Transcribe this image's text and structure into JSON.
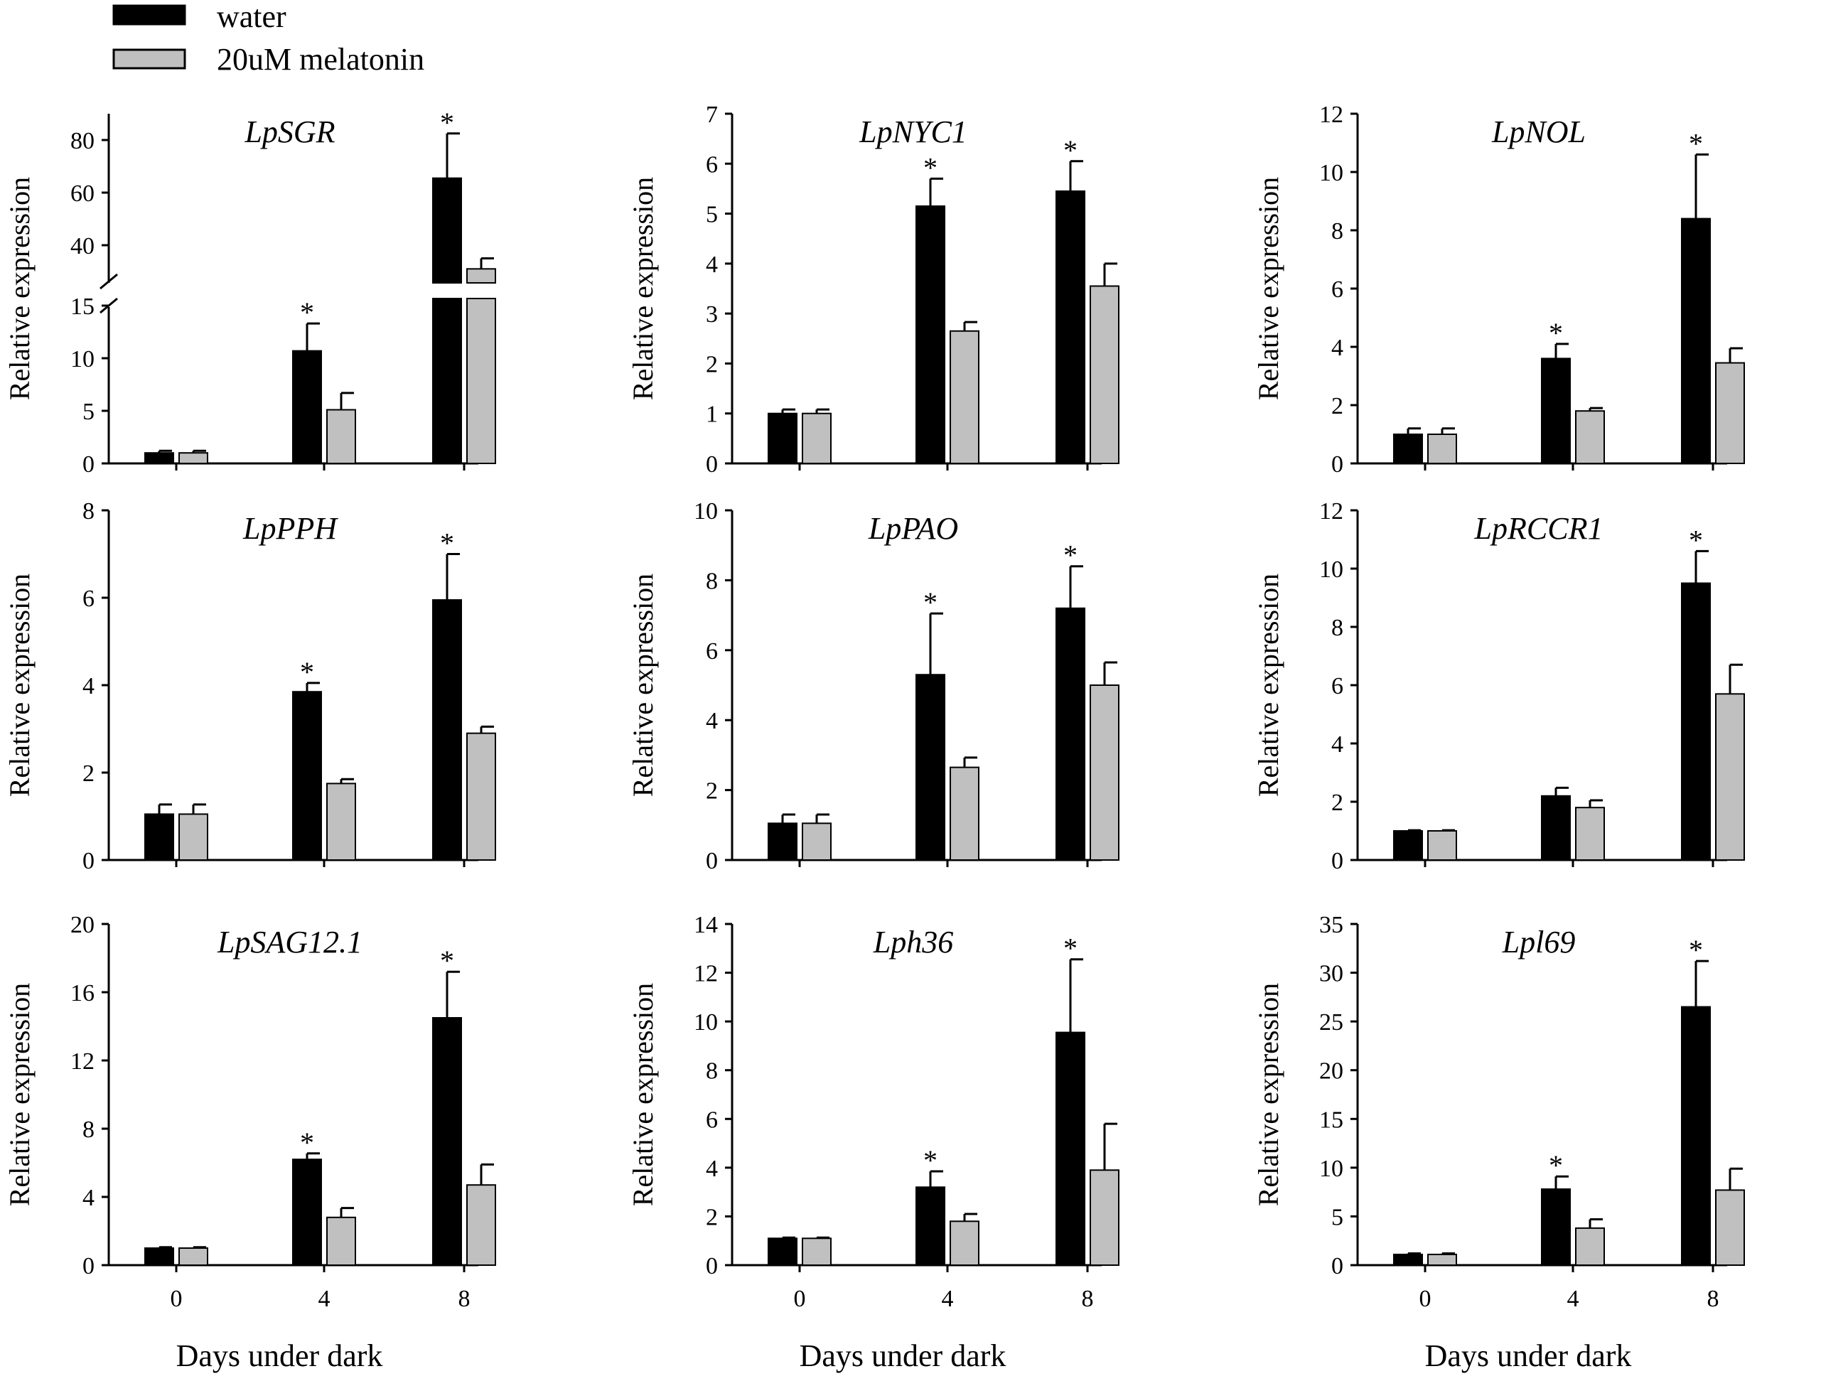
{
  "legend": {
    "items": [
      {
        "label": "water",
        "color": "#000000"
      },
      {
        "label": "20uM melatonin",
        "color": "#c0c0c0"
      }
    ]
  },
  "colors": {
    "water": "#000000",
    "melatonin": "#c0c0c0",
    "axis": "#000000"
  },
  "chart_data": [
    {
      "type": "bar",
      "title": "LpSGR",
      "ylabel": "Relative expression",
      "xlabel": "",
      "categories": [
        "0",
        "4",
        "8"
      ],
      "axis_break": {
        "lower_range": [
          0,
          15
        ],
        "upper_range": [
          30,
          90
        ]
      },
      "yticks_lower": [
        0,
        5,
        10,
        15
      ],
      "yticks_upper": [
        40,
        60,
        80
      ],
      "series": [
        {
          "name": "water",
          "values": [
            1.0,
            10.7,
            65.5
          ],
          "errors": [
            0.2,
            2.6,
            17
          ]
        },
        {
          "name": "20uM melatonin",
          "values": [
            1.0,
            5.1,
            31
          ],
          "errors": [
            0.2,
            1.6,
            4
          ]
        }
      ],
      "significance": [
        "",
        "*",
        "*"
      ]
    },
    {
      "type": "bar",
      "title": "LpNYC1",
      "ylabel": "Relative expression",
      "xlabel": "",
      "categories": [
        "0",
        "4",
        "8"
      ],
      "ylim": [
        0,
        7
      ],
      "yticks": [
        0,
        1,
        2,
        3,
        4,
        5,
        6,
        7
      ],
      "series": [
        {
          "name": "water",
          "values": [
            1.0,
            5.15,
            5.45
          ],
          "errors": [
            0.08,
            0.55,
            0.6
          ]
        },
        {
          "name": "20uM melatonin",
          "values": [
            1.0,
            2.65,
            3.55
          ],
          "errors": [
            0.08,
            0.18,
            0.45
          ]
        }
      ],
      "significance": [
        "",
        "*",
        "*"
      ]
    },
    {
      "type": "bar",
      "title": "LpNOL",
      "ylabel": "Relative expression",
      "xlabel": "",
      "categories": [
        "0",
        "4",
        "8"
      ],
      "ylim": [
        0,
        12
      ],
      "yticks": [
        0,
        2,
        4,
        6,
        8,
        10,
        12
      ],
      "series": [
        {
          "name": "water",
          "values": [
            1.0,
            3.6,
            8.4
          ],
          "errors": [
            0.2,
            0.5,
            2.2
          ]
        },
        {
          "name": "20uM melatonin",
          "values": [
            1.0,
            1.8,
            3.45
          ],
          "errors": [
            0.2,
            0.1,
            0.5
          ]
        }
      ],
      "significance": [
        "",
        "*",
        "*"
      ]
    },
    {
      "type": "bar",
      "title": "LpPPH",
      "ylabel": "Relative expression",
      "xlabel": "",
      "categories": [
        "0",
        "4",
        "8"
      ],
      "ylim": [
        0,
        8
      ],
      "yticks": [
        0,
        2,
        4,
        6,
        8
      ],
      "series": [
        {
          "name": "water",
          "values": [
            1.05,
            3.85,
            5.95
          ],
          "errors": [
            0.22,
            0.2,
            1.05
          ]
        },
        {
          "name": "20uM melatonin",
          "values": [
            1.05,
            1.75,
            2.9
          ],
          "errors": [
            0.22,
            0.1,
            0.15
          ]
        }
      ],
      "significance": [
        "",
        "*",
        "*"
      ]
    },
    {
      "type": "bar",
      "title": "LpPAO",
      "ylabel": "Relative expression",
      "xlabel": "",
      "categories": [
        "0",
        "4",
        "8"
      ],
      "ylim": [
        0,
        10
      ],
      "yticks": [
        0,
        2,
        4,
        6,
        8,
        10
      ],
      "series": [
        {
          "name": "water",
          "values": [
            1.05,
            5.3,
            7.2
          ],
          "errors": [
            0.25,
            1.75,
            1.2
          ]
        },
        {
          "name": "20uM melatonin",
          "values": [
            1.05,
            2.65,
            5.0
          ],
          "errors": [
            0.25,
            0.28,
            0.65
          ]
        }
      ],
      "significance": [
        "",
        "*",
        "*"
      ]
    },
    {
      "type": "bar",
      "title": "LpRCCR1",
      "ylabel": "Relative expression",
      "xlabel": "",
      "categories": [
        "0",
        "4",
        "8"
      ],
      "ylim": [
        0,
        12
      ],
      "yticks": [
        0,
        2,
        4,
        6,
        8,
        10,
        12
      ],
      "series": [
        {
          "name": "water",
          "values": [
            1.0,
            2.2,
            9.5
          ],
          "errors": [
            0.02,
            0.28,
            1.1
          ]
        },
        {
          "name": "20uM melatonin",
          "values": [
            1.0,
            1.8,
            5.7
          ],
          "errors": [
            0.02,
            0.25,
            1.0
          ]
        }
      ],
      "significance": [
        "",
        "",
        "*"
      ]
    },
    {
      "type": "bar",
      "title": "LpSAG12.1",
      "ylabel": "Relative expression",
      "xlabel": "Days under dark",
      "categories": [
        "0",
        "4",
        "8"
      ],
      "ylim": [
        0,
        20
      ],
      "yticks": [
        0,
        4,
        8,
        12,
        16,
        20
      ],
      "series": [
        {
          "name": "water",
          "values": [
            1.0,
            6.2,
            14.5
          ],
          "errors": [
            0.05,
            0.35,
            2.7
          ]
        },
        {
          "name": "20uM melatonin",
          "values": [
            1.0,
            2.8,
            4.7
          ],
          "errors": [
            0.05,
            0.55,
            1.2
          ]
        }
      ],
      "significance": [
        "",
        "*",
        "*"
      ]
    },
    {
      "type": "bar",
      "title": "Lph36",
      "ylabel": "Relative expression",
      "xlabel": "Days under dark",
      "categories": [
        "0",
        "4",
        "8"
      ],
      "ylim": [
        0,
        14
      ],
      "yticks": [
        0,
        2,
        4,
        6,
        8,
        10,
        12,
        14
      ],
      "series": [
        {
          "name": "water",
          "values": [
            1.1,
            3.2,
            9.55
          ],
          "errors": [
            0.03,
            0.65,
            3.0
          ]
        },
        {
          "name": "20uM melatonin",
          "values": [
            1.1,
            1.8,
            3.9
          ],
          "errors": [
            0.03,
            0.3,
            1.9
          ]
        }
      ],
      "significance": [
        "",
        "*",
        "*"
      ]
    },
    {
      "type": "bar",
      "title": "Lpl69",
      "ylabel": "Relative expression",
      "xlabel": "Days under dark",
      "categories": [
        "0",
        "4",
        "8"
      ],
      "ylim": [
        0,
        35
      ],
      "yticks": [
        0,
        5,
        10,
        15,
        20,
        25,
        30,
        35
      ],
      "series": [
        {
          "name": "water",
          "values": [
            1.1,
            7.8,
            26.5
          ],
          "errors": [
            0.1,
            1.3,
            4.7
          ]
        },
        {
          "name": "20uM melatonin",
          "values": [
            1.1,
            3.8,
            7.7
          ],
          "errors": [
            0.1,
            0.9,
            2.2
          ]
        }
      ],
      "significance": [
        "",
        "*",
        "*"
      ]
    }
  ]
}
